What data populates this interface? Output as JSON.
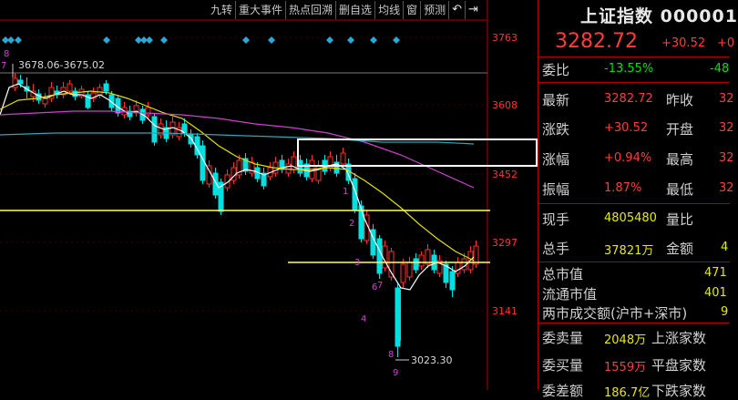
{
  "toolbar": {
    "items": [
      "九转",
      "重大事件",
      "热点回溯",
      "删自选",
      "均线",
      "窗",
      "预测"
    ],
    "back_icon": "back-arrow-icon",
    "pin_icon": "pin-icon"
  },
  "chart": {
    "price_labels": [
      "3763",
      "3608",
      "3452",
      "3297",
      "3141"
    ],
    "top_annotation": "3678.06-3675.02",
    "top_annotation_mark": "7",
    "low_annotation": "3023.30",
    "nine_turn_marks": [
      "8",
      "1",
      "2",
      "3",
      "4",
      "6",
      "7",
      "8",
      "9"
    ],
    "colors": {
      "up": "#ff3030",
      "down": "#00e0e0",
      "ma5": "#ffffff",
      "ma10": "#e0e000",
      "ma20": "#d040d0",
      "ma60": "#2aa8b8",
      "hline": "#ffff60",
      "diamond": "#2aa8d8"
    }
  },
  "panel": {
    "title": "上证指数",
    "code": "000001",
    "price": "3282.72",
    "change": "+30.52",
    "change2": "+0",
    "rows": [
      {
        "l1": "委比",
        "v1": "-13.55%",
        "l2": "",
        "v2": "-48"
      },
      {
        "l1": "最新",
        "v1": "3282.72",
        "l2": "昨收",
        "v2": "32"
      },
      {
        "l1": "涨跌",
        "v1": "+30.52",
        "l2": "开盘",
        "v2": "32"
      },
      {
        "l1": "涨幅",
        "v1": "+0.94%",
        "l2": "最高",
        "v2": "32"
      },
      {
        "l1": "振幅",
        "v1": "1.87%",
        "l2": "最低",
        "v2": "32"
      },
      {
        "l1": "现手",
        "v1": "4805480",
        "l2": "量比",
        "v2": ""
      },
      {
        "l1": "总手",
        "v1": "37821万",
        "l2": "金额",
        "v2": "4"
      }
    ],
    "market": [
      {
        "l": "总市值",
        "v": "471"
      },
      {
        "l": "流通市值",
        "v": "401"
      },
      {
        "l": "两市成交额(沪市+深市)",
        "v": "9"
      }
    ],
    "orders": [
      {
        "l1": "委卖量",
        "v1": "2048万",
        "l2": "上涨家数"
      },
      {
        "l1": "委买量",
        "v1": "1559万",
        "l2": "平盘家数"
      },
      {
        "l1": "委差额",
        "v1": "186.7亿",
        "l2": "下跌家数"
      }
    ]
  }
}
